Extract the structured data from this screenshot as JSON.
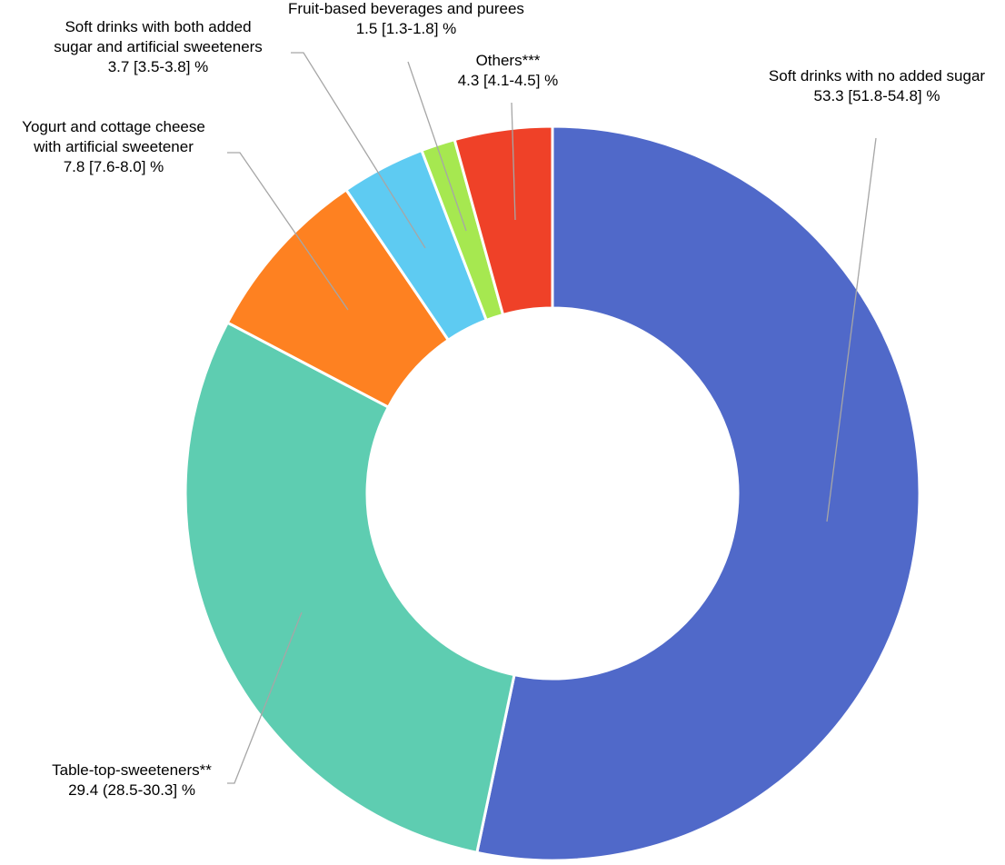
{
  "chart_data": {
    "type": "pie",
    "style": "donut",
    "slices": [
      {
        "name_lines": [
          "Soft drinks with no added sugar"
        ],
        "value_text": "53.3 [51.8-54.8] %",
        "value": 53.3,
        "color": "#5069c9"
      },
      {
        "name_lines": [
          "Table-top-sweeteners**"
        ],
        "value_text": "29.4 (28.5-30.3] %",
        "value": 29.4,
        "color": "#5ecdb1"
      },
      {
        "name_lines": [
          "Yogurt and cottage cheese",
          "with artificial sweetener"
        ],
        "value_text": "7.8 [7.6-8.0] %",
        "value": 7.8,
        "color": "#fe8121"
      },
      {
        "name_lines": [
          "Soft drinks with both added",
          "sugar and artificial sweeteners"
        ],
        "value_text": "3.7 [3.5-3.8] %",
        "value": 3.7,
        "color": "#5ecbf2"
      },
      {
        "name_lines": [
          "Fruit-based beverages and purees"
        ],
        "value_text": "1.5 [1.3-1.8] %",
        "value": 1.5,
        "color": "#a6e850"
      },
      {
        "name_lines": [
          "Others***"
        ],
        "value_text": "4.3 [4.1-4.5] %",
        "value": 4.3,
        "color": "#ef4128"
      }
    ]
  }
}
